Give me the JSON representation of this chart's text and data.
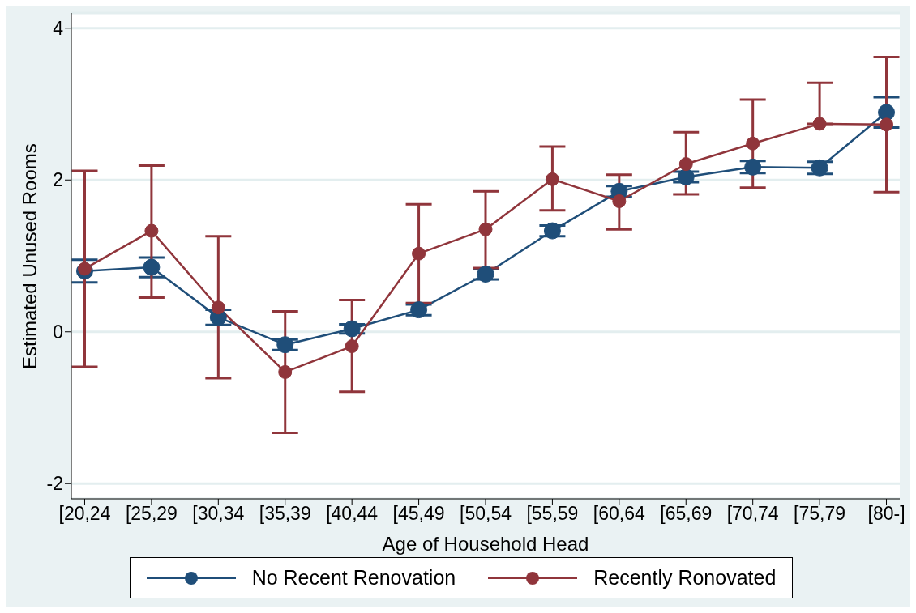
{
  "chart_data": {
    "type": "line",
    "xlabel": "Age of Household Head",
    "ylabel": "Estimated Unused Rooms",
    "categories": [
      "[20,24",
      "[25,29",
      "[30,34",
      "[35,39",
      "[40,44",
      "[45,49",
      "[50,54",
      "[55,59",
      "[60,64",
      "[65,69",
      "[70,74",
      "[75,79",
      "[80-]"
    ],
    "series": [
      {
        "name": "No Recent Renovation",
        "color": "#1f4e79",
        "values": [
          0.8,
          0.85,
          0.19,
          -0.17,
          0.04,
          0.29,
          0.76,
          1.33,
          1.85,
          2.04,
          2.17,
          2.16,
          2.89
        ],
        "errors": [
          0.15,
          0.13,
          0.1,
          0.07,
          0.06,
          0.07,
          0.07,
          0.07,
          0.07,
          0.07,
          0.08,
          0.08,
          0.2
        ]
      },
      {
        "name": "Recently Ronovated",
        "color": "#90353b",
        "values": [
          0.83,
          1.33,
          0.32,
          -0.53,
          -0.19,
          1.03,
          1.35,
          2.01,
          1.72,
          2.21,
          2.48,
          2.74,
          2.73
        ],
        "errors": [
          [
            -0.46,
            2.12
          ],
          [
            0.45,
            2.19
          ],
          [
            -0.61,
            1.26
          ],
          [
            -1.33,
            0.27
          ],
          [
            -0.79,
            0.42
          ],
          [
            0.38,
            1.68
          ],
          [
            0.84,
            1.85
          ],
          [
            1.6,
            2.44
          ],
          [
            1.35,
            2.07
          ],
          [
            1.81,
            2.63
          ],
          [
            1.9,
            3.06
          ],
          [
            2.74,
            3.28
          ],
          [
            1.84,
            3.62
          ]
        ]
      }
    ],
    "ylim": [
      -2.2,
      4.2
    ],
    "yticks": [
      -2,
      0,
      2,
      4
    ],
    "grid": "y",
    "legend": "bottom",
    "marker": "circle"
  }
}
